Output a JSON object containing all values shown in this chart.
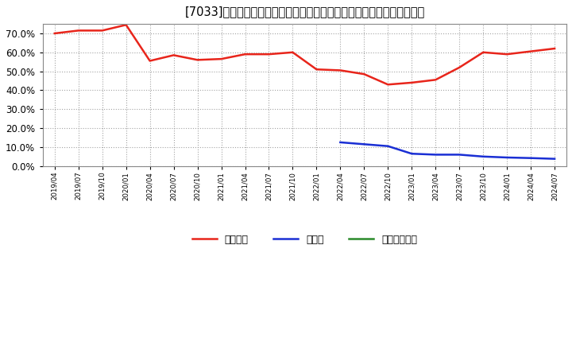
{
  "title": "[7033]　自己資本、のれん、繰延税金資産の総資産に対する比率の推移",
  "x_labels": [
    "2019/04",
    "2019/07",
    "2019/10",
    "2020/01",
    "2020/04",
    "2020/07",
    "2020/10",
    "2021/01",
    "2021/04",
    "2021/07",
    "2021/10",
    "2022/01",
    "2022/04",
    "2022/07",
    "2022/10",
    "2023/01",
    "2023/04",
    "2023/07",
    "2023/10",
    "2024/01",
    "2024/04",
    "2024/07"
  ],
  "jikoshihon": [
    70.0,
    71.5,
    71.5,
    74.5,
    55.5,
    58.5,
    56.0,
    56.5,
    59.0,
    59.0,
    60.0,
    51.0,
    50.5,
    48.5,
    43.0,
    44.0,
    45.5,
    52.0,
    60.0,
    59.0,
    60.5,
    62.0
  ],
  "noren": [
    null,
    null,
    null,
    null,
    null,
    null,
    null,
    null,
    null,
    null,
    null,
    null,
    12.5,
    11.5,
    10.5,
    6.5,
    6.0,
    6.0,
    5.0,
    4.5,
    4.2,
    3.8
  ],
  "kurinobe": [
    null,
    null,
    null,
    null,
    null,
    null,
    null,
    null,
    null,
    null,
    null,
    null,
    null,
    null,
    null,
    null,
    null,
    null,
    null,
    null,
    null,
    null
  ],
  "jikoshihon_color": "#e8251b",
  "noren_color": "#1a2fd4",
  "kurinobe_color": "#2a8a2a",
  "background_color": "#ffffff",
  "plot_bg_color": "#ffffff",
  "grid_color": "#999999",
  "ylim_min": 0,
  "ylim_max": 75,
  "yticks": [
    0,
    10,
    20,
    30,
    40,
    50,
    60,
    70
  ],
  "legend_labels": [
    "自己資本",
    "のれん",
    "繰延税金資産"
  ]
}
